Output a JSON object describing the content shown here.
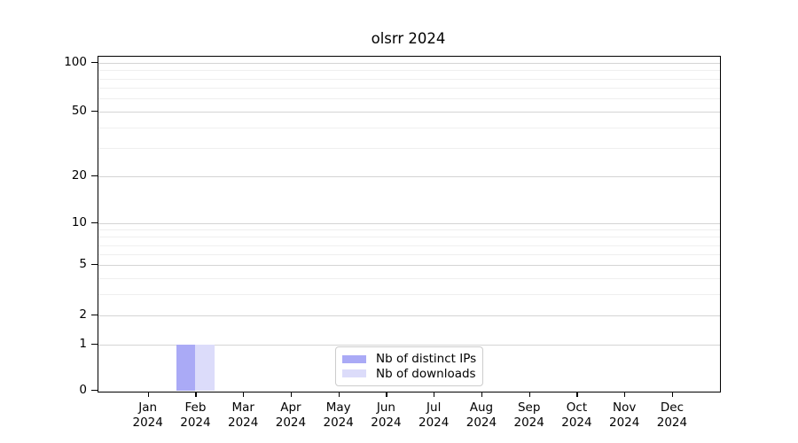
{
  "title": "olsrr 2024",
  "chart_data": {
    "type": "bar",
    "title": "olsrr 2024",
    "categories": [
      "Jan 2024",
      "Feb 2024",
      "Mar 2024",
      "Apr 2024",
      "May 2024",
      "Jun 2024",
      "Jul 2024",
      "Aug 2024",
      "Sep 2024",
      "Oct 2024",
      "Nov 2024",
      "Dec 2024"
    ],
    "x_tick_months": [
      "Jan",
      "Feb",
      "Mar",
      "Apr",
      "May",
      "Jun",
      "Jul",
      "Aug",
      "Sep",
      "Oct",
      "Nov",
      "Dec"
    ],
    "x_tick_year": "2024",
    "series": [
      {
        "name": "Nb of distinct IPs",
        "color": "#aaaaf6",
        "values": [
          0,
          1,
          0,
          0,
          0,
          0,
          0,
          0,
          0,
          0,
          0,
          0
        ]
      },
      {
        "name": "Nb of downloads",
        "color": "#dcdcfa",
        "values": [
          0,
          1,
          0,
          0,
          0,
          0,
          0,
          0,
          0,
          0,
          0,
          0
        ]
      }
    ],
    "xlabel": "",
    "ylabel": "",
    "yticks_major": [
      0,
      1,
      2,
      5,
      10,
      20,
      50,
      100
    ],
    "yticks_minor": [
      3,
      4,
      6,
      7,
      8,
      9,
      30,
      40,
      60,
      70,
      80,
      90
    ],
    "ylim": [
      0,
      110
    ],
    "yscale": "log1p",
    "grid": "horizontal major+minor",
    "legend_position": "bottom-center-inside"
  },
  "legend": {
    "items": [
      {
        "label": "Nb of distinct IPs",
        "color": "#aaaaf6"
      },
      {
        "label": "Nb of downloads",
        "color": "#dcdcfa"
      }
    ]
  },
  "colors": {
    "axis": "#000000",
    "grid_major": "#d4d4d4",
    "grid_minor": "#efefef",
    "background": "#ffffff"
  }
}
